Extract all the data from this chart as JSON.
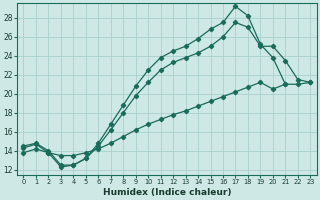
{
  "xlabel": "Humidex (Indice chaleur)",
  "background_color": "#cde8e5",
  "grid_color": "#aacfcc",
  "line_color": "#1a6b5a",
  "xlim": [
    -0.5,
    23.5
  ],
  "ylim": [
    11.5,
    29.5
  ],
  "xticks": [
    0,
    1,
    2,
    3,
    4,
    5,
    6,
    7,
    8,
    9,
    10,
    11,
    12,
    13,
    14,
    15,
    16,
    17,
    18,
    19,
    20,
    21,
    22,
    23
  ],
  "yticks": [
    12,
    14,
    16,
    18,
    20,
    22,
    24,
    26,
    28
  ],
  "line1_x": [
    0,
    1,
    2,
    3,
    4,
    5,
    6,
    7,
    8,
    9,
    10,
    11,
    12,
    13,
    14,
    15,
    16,
    17,
    18,
    19,
    20,
    21
  ],
  "line1_y": [
    14.5,
    14.8,
    14.0,
    12.5,
    12.5,
    13.2,
    14.8,
    16.8,
    18.8,
    20.8,
    22.5,
    23.8,
    24.5,
    25.0,
    25.8,
    26.8,
    27.5,
    29.2,
    28.2,
    25.2,
    23.8,
    21.0
  ],
  "line2_x": [
    0,
    1,
    2,
    3,
    4,
    5,
    6,
    7,
    8,
    9,
    10,
    11,
    12,
    13,
    14,
    15,
    16,
    17,
    18,
    19,
    20,
    21,
    22,
    23
  ],
  "line2_y": [
    14.3,
    14.7,
    13.8,
    12.3,
    12.5,
    13.2,
    14.5,
    16.2,
    18.0,
    19.8,
    21.2,
    22.5,
    23.3,
    23.8,
    24.3,
    25.0,
    26.0,
    27.5,
    27.0,
    25.0,
    25.0,
    23.5,
    21.5,
    21.2
  ],
  "line3_x": [
    0,
    1,
    2,
    3,
    4,
    5,
    6,
    7,
    8,
    9,
    10,
    11,
    12,
    13,
    14,
    15,
    16,
    17,
    18,
    19,
    20,
    21,
    22,
    23
  ],
  "line3_y": [
    13.8,
    14.2,
    13.8,
    13.5,
    13.5,
    13.8,
    14.2,
    14.8,
    15.5,
    16.2,
    16.8,
    17.3,
    17.8,
    18.2,
    18.7,
    19.2,
    19.7,
    20.2,
    20.7,
    21.2,
    20.5,
    21.0,
    21.0,
    21.2
  ]
}
